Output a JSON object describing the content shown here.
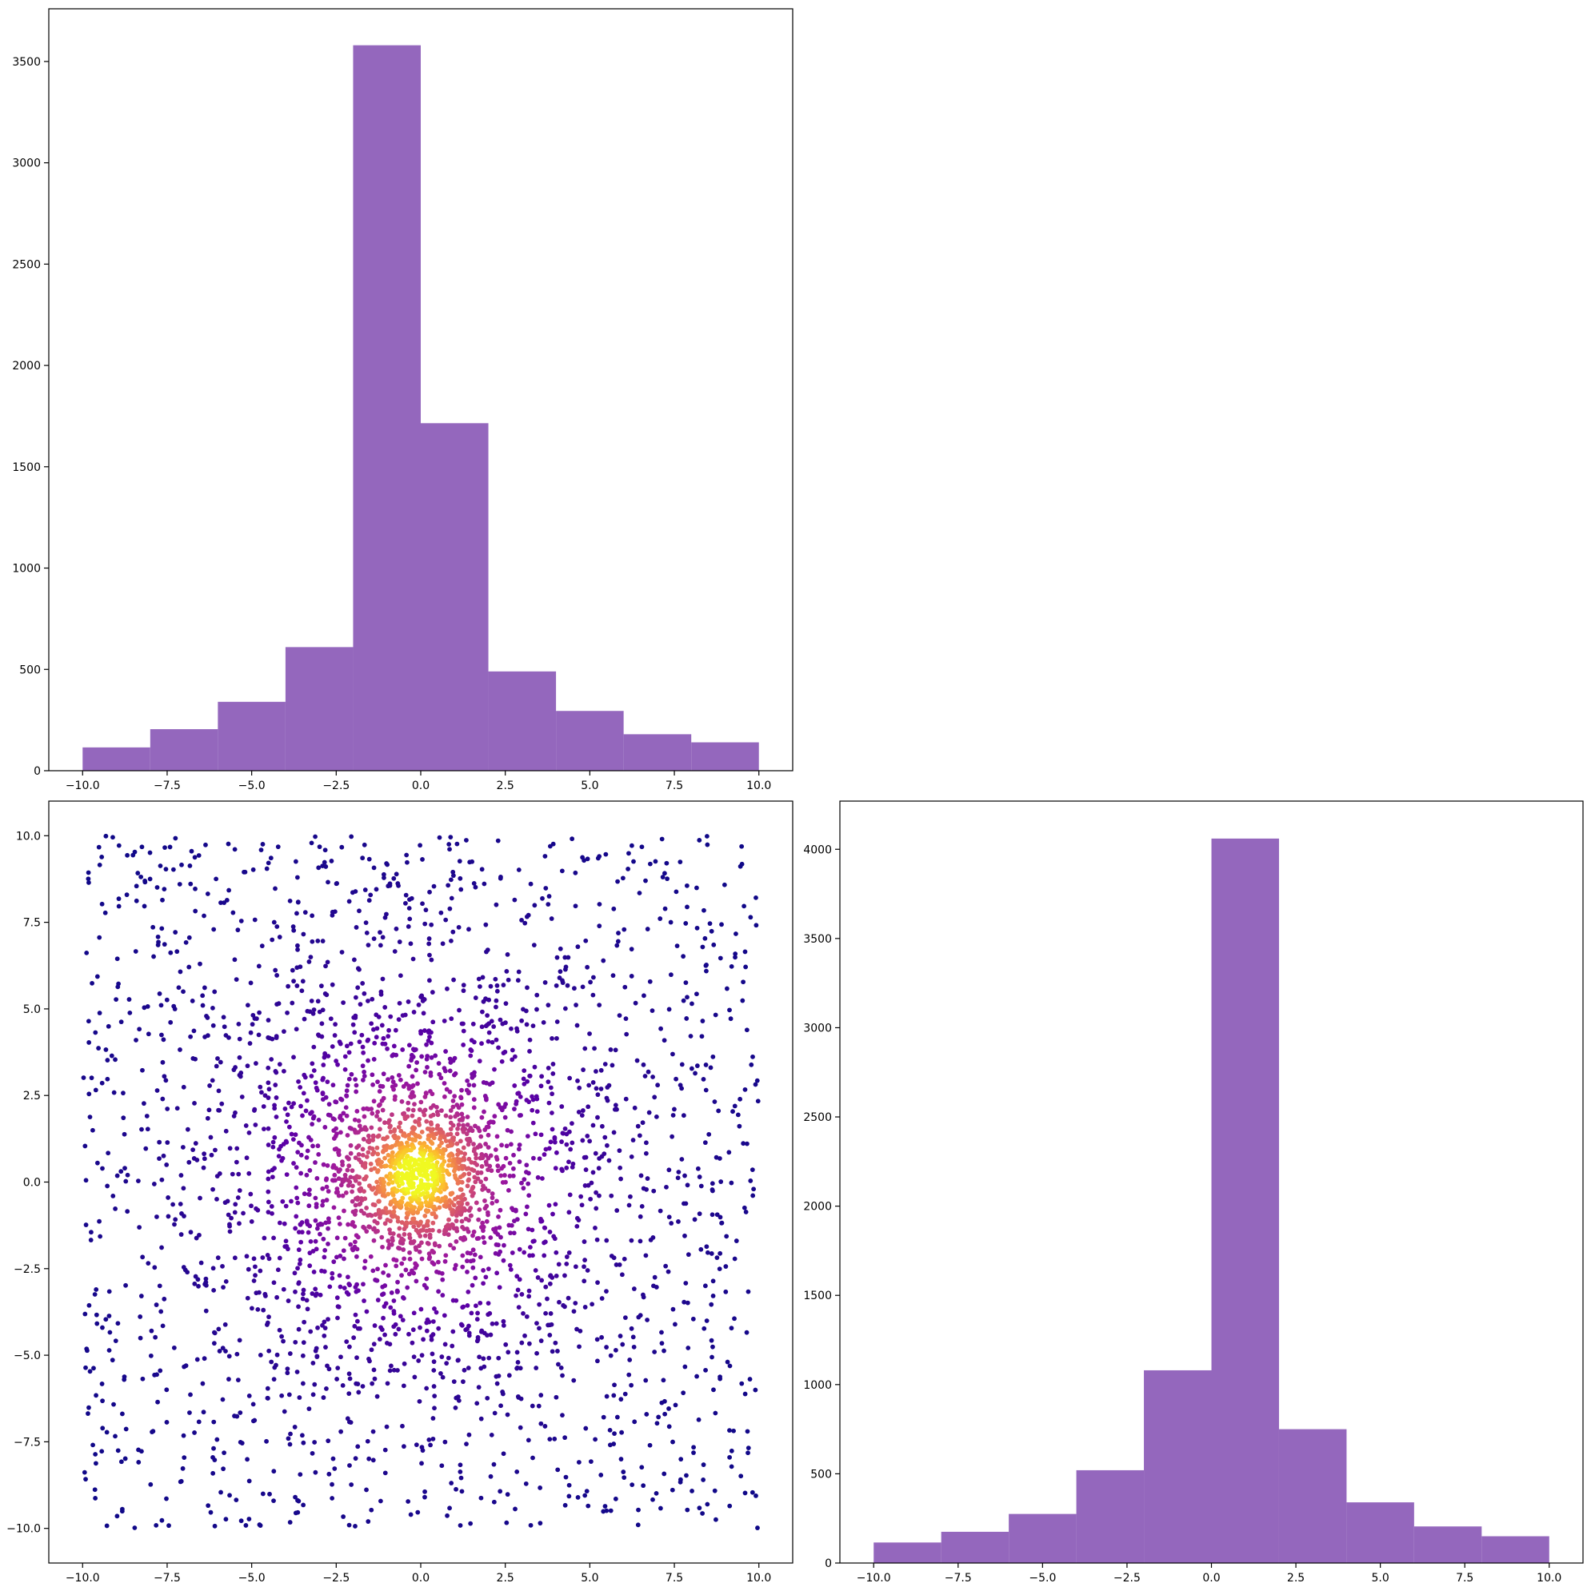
{
  "chart_data": [
    {
      "type": "bar",
      "panel": "top-left histogram",
      "bin_edges": [
        -10,
        -8,
        -6,
        -4,
        -2,
        0,
        2,
        4,
        6,
        8,
        10
      ],
      "values": [
        115,
        205,
        340,
        610,
        3580,
        1715,
        490,
        295,
        180,
        140
      ],
      "xlim": [
        -11,
        11
      ],
      "ylim": [
        0,
        3760
      ],
      "xticks": [
        -10.0,
        -7.5,
        -5.0,
        -2.5,
        0.0,
        2.5,
        5.0,
        7.5,
        10.0
      ],
      "xtick_labels": [
        "−10.0",
        "−7.5",
        "−5.0",
        "−2.5",
        "0.0",
        "2.5",
        "5.0",
        "7.5",
        "10.0"
      ],
      "yticks": [
        0,
        500,
        1000,
        1500,
        2000,
        2500,
        3000,
        3500
      ],
      "ytick_labels": [
        "0",
        "500",
        "1000",
        "1500",
        "2000",
        "2500",
        "3000",
        "3500"
      ],
      "grid": false,
      "color": "#9467bd"
    },
    {
      "type": "scatter",
      "panel": "bottom-left density scatter",
      "x_range": [
        -10,
        10
      ],
      "y_range": [
        -10,
        10
      ],
      "density_center": [
        -0.1,
        0.2
      ],
      "xlim": [
        -11,
        11
      ],
      "ylim": [
        -11,
        11
      ],
      "xticks": [
        -10.0,
        -7.5,
        -5.0,
        -2.5,
        0.0,
        2.5,
        5.0,
        7.5,
        10.0
      ],
      "xtick_labels": [
        "−10.0",
        "−7.5",
        "−5.0",
        "−2.5",
        "0.0",
        "2.5",
        "5.0",
        "7.5",
        "10.0"
      ],
      "yticks": [
        -10.0,
        -7.5,
        -5.0,
        -2.5,
        0.0,
        2.5,
        5.0,
        7.5,
        10.0
      ],
      "ytick_labels": [
        "−10.0",
        "−7.5",
        "−5.0",
        "−2.5",
        "0.0",
        "2.5",
        "5.0",
        "7.5",
        "10.0"
      ],
      "colormap": "plasma",
      "colormap_stops": [
        "#0d0887",
        "#5c01a6",
        "#9c179e",
        "#cc4778",
        "#ed7953",
        "#fdb42f",
        "#f0f921"
      ],
      "grid": false
    },
    {
      "type": "bar",
      "panel": "bottom-right histogram",
      "bin_edges": [
        -10,
        -8,
        -6,
        -4,
        -2,
        0,
        2,
        4,
        6,
        8,
        10
      ],
      "values": [
        115,
        175,
        275,
        520,
        1080,
        4060,
        750,
        340,
        205,
        150
      ],
      "xlim": [
        -11,
        11
      ],
      "ylim": [
        0,
        4270
      ],
      "xticks": [
        -10.0,
        -7.5,
        -5.0,
        -2.5,
        0.0,
        2.5,
        5.0,
        7.5,
        10.0
      ],
      "xtick_labels": [
        "−10.0",
        "−7.5",
        "−5.0",
        "−2.5",
        "0.0",
        "2.5",
        "5.0",
        "7.5",
        "10.0"
      ],
      "yticks": [
        0,
        500,
        1000,
        1500,
        2000,
        2500,
        3000,
        3500,
        4000
      ],
      "ytick_labels": [
        "0",
        "500",
        "1000",
        "1500",
        "2000",
        "2500",
        "3000",
        "3500",
        "4000"
      ],
      "grid": false,
      "color": "#9467bd"
    }
  ]
}
